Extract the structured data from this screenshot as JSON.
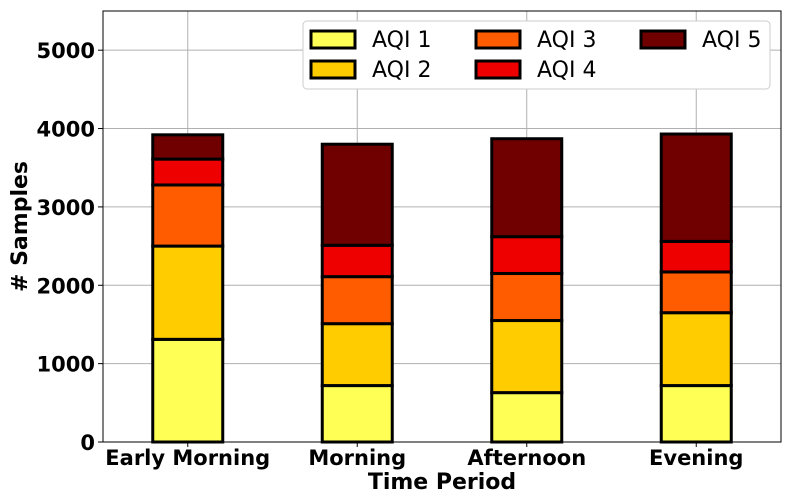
{
  "chart_data": {
    "type": "bar",
    "stacked": true,
    "categories": [
      "Early Morning",
      "Morning",
      "Afternoon",
      "Evening"
    ],
    "series": [
      {
        "name": "AQI 1",
        "color": "#ffff55",
        "values": [
          1310,
          720,
          630,
          720
        ]
      },
      {
        "name": "AQI 2",
        "color": "#ffcc00",
        "values": [
          1190,
          790,
          920,
          930
        ]
      },
      {
        "name": "AQI 3",
        "color": "#ff5c00",
        "values": [
          780,
          600,
          600,
          520
        ]
      },
      {
        "name": "AQI 4",
        "color": "#ee0000",
        "values": [
          330,
          400,
          470,
          390
        ]
      },
      {
        "name": "AQI 5",
        "color": "#700000",
        "values": [
          310,
          1290,
          1250,
          1370
        ]
      }
    ],
    "title": "",
    "xlabel": "Time Period",
    "ylabel": "# Samples",
    "ylim": [
      0,
      5500
    ],
    "yticks": [
      0,
      1000,
      2000,
      3000,
      4000,
      5000
    ],
    "grid": true,
    "legend": {
      "placement": "top-right",
      "columns": 3
    }
  }
}
